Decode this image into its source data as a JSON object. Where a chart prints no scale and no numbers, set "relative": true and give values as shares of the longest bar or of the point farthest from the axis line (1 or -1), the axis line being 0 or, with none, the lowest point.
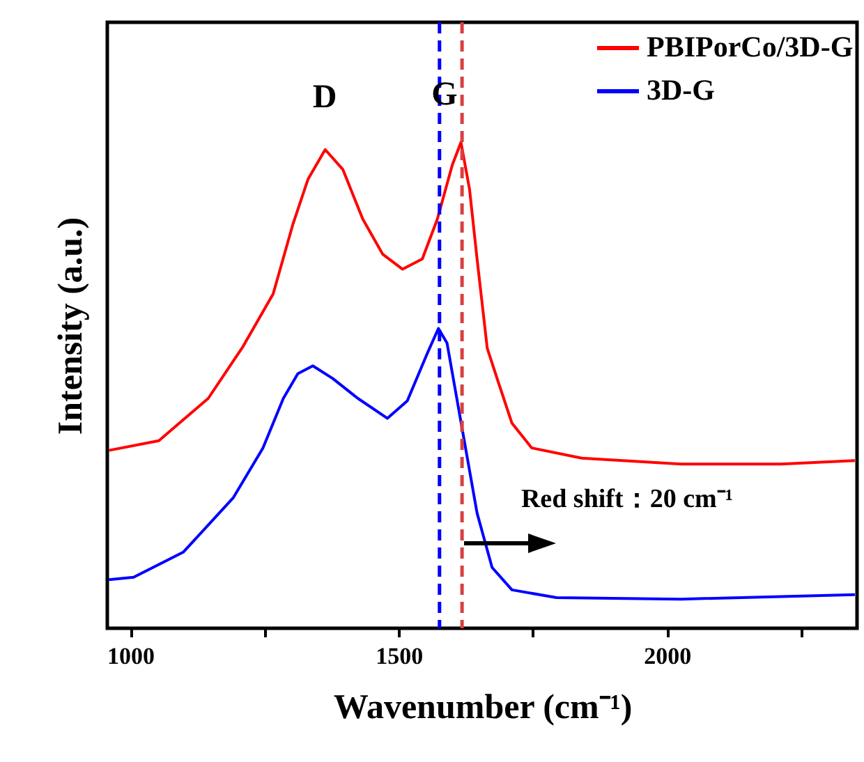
{
  "chart_data": {
    "type": "line",
    "xlabel": "Wavenumber (cm⁻¹)",
    "ylabel": "Intensity (a.u.)",
    "relative": true,
    "legend": "top right",
    "xlim": [
      957,
      2354
    ],
    "xticks": [
      1000,
      {
        "value": 1250,
        "label": null
      },
      1500,
      {
        "value": 1750,
        "label": null
      },
      2000,
      {
        "value": 2250,
        "label": null
      }
    ],
    "annotations": [
      "D",
      "G",
      "Red shift：20 cm⁻¹"
    ],
    "ref_lines": [
      {
        "axis": "x",
        "value": 1576,
        "color": "#0000ff",
        "line_style": "dashed"
      },
      {
        "axis": "x",
        "value": 1618,
        "color": "#d94040",
        "line_style": "dashed"
      }
    ],
    "series": [
      {
        "name": "PBIPorCo/3D-G",
        "color": "#ff0000",
        "x": [
          960,
          1053,
          1145,
          1210,
          1266,
          1303,
          1331,
          1363,
          1396,
          1433,
          1470,
          1507,
          1544,
          1572,
          1600,
          1616,
          1632,
          1646,
          1665,
          1683,
          1711,
          1748,
          1841,
          2026,
          2212,
          2350
        ],
        "values": [
          0.366,
          0.386,
          0.473,
          0.58,
          0.688,
          0.832,
          0.924,
          0.985,
          0.944,
          0.842,
          0.77,
          0.739,
          0.76,
          0.842,
          0.954,
          1,
          0.903,
          0.76,
          0.576,
          0.515,
          0.422,
          0.371,
          0.35,
          0.338,
          0.338,
          0.345
        ]
      },
      {
        "name": "3D-G",
        "color": "#0000ff",
        "x": [
          960,
          1006,
          1099,
          1192,
          1247,
          1285,
          1312,
          1340,
          1377,
          1424,
          1479,
          1516,
          1553,
          1574,
          1590,
          1618,
          1646,
          1674,
          1711,
          1794,
          2026,
          2350
        ],
        "values": [
          0.1,
          0.105,
          0.157,
          0.269,
          0.371,
          0.473,
          0.524,
          0.54,
          0.514,
          0.473,
          0.432,
          0.468,
          0.565,
          0.617,
          0.587,
          0.412,
          0.237,
          0.125,
          0.079,
          0.063,
          0.06,
          0.069
        ]
      }
    ]
  }
}
